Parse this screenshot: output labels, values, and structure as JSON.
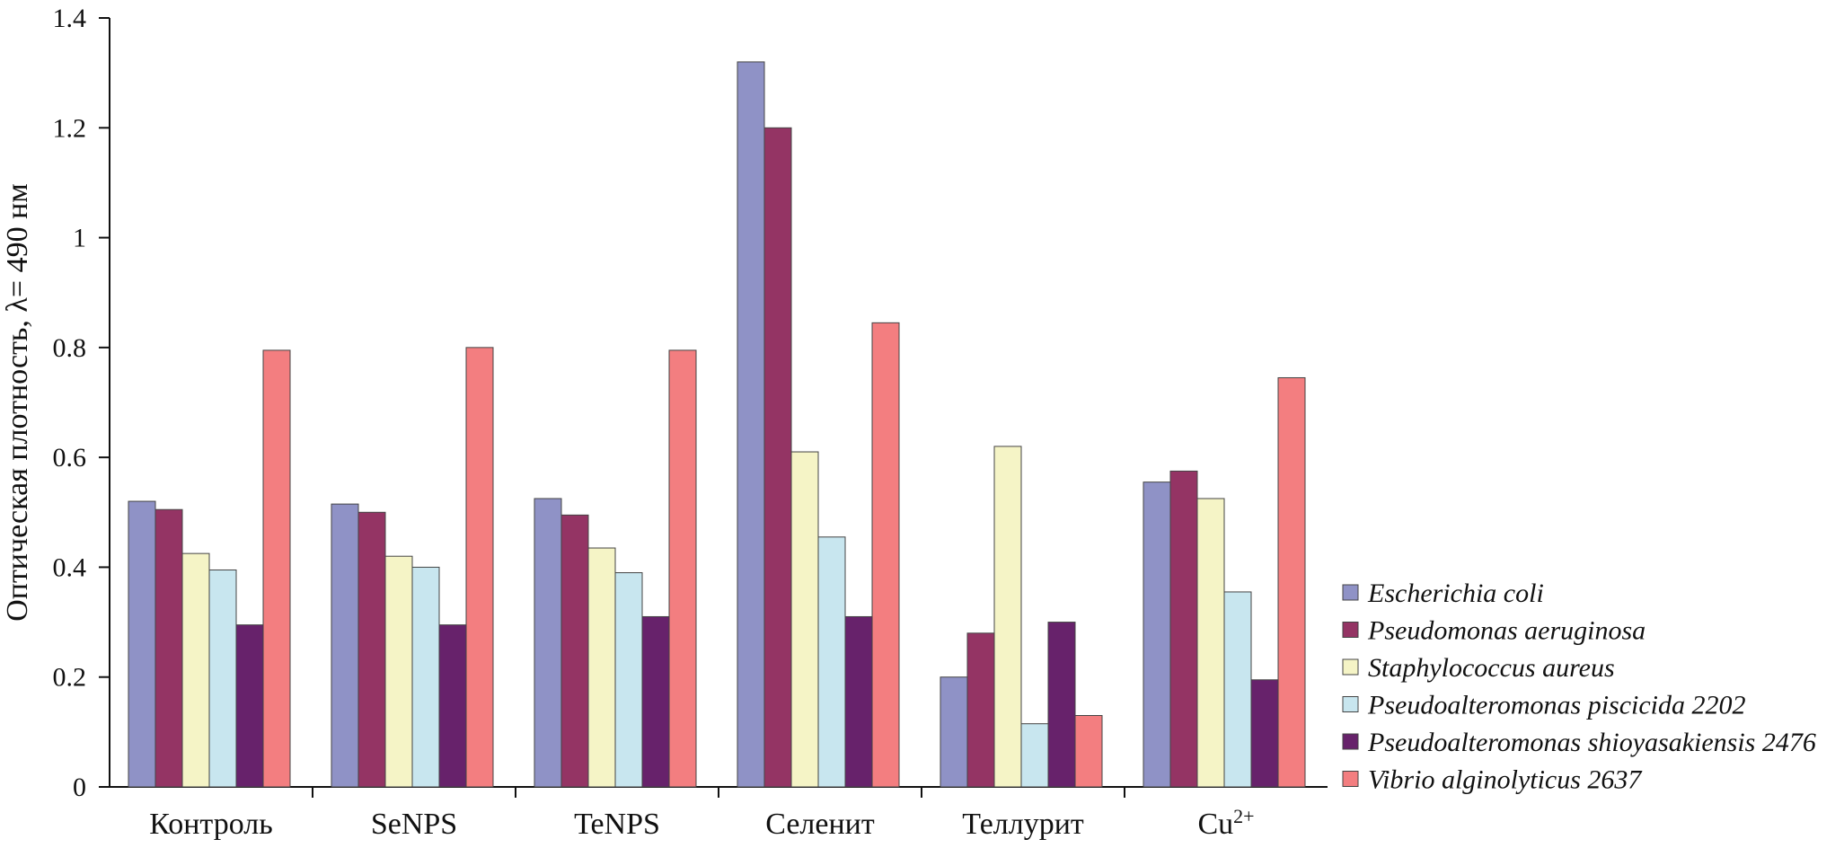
{
  "chart_data": {
    "type": "bar",
    "ylabel": "Оптическая плотность, λ= 490 нм",
    "ylim": [
      0,
      1.4
    ],
    "yticks": [
      "0",
      "0.2",
      "0.4",
      "0.6",
      "0.8",
      "1",
      "1.2",
      "1.4"
    ],
    "categories": [
      "Контроль",
      "SeNPS",
      "TeNPS",
      "Селенит",
      "Теллурит",
      "Cu2+"
    ],
    "category_display": [
      {
        "base": "Контроль",
        "sup": ""
      },
      {
        "base": "SeNPS",
        "sup": ""
      },
      {
        "base": "TeNPS",
        "sup": ""
      },
      {
        "base": "Селенит",
        "sup": ""
      },
      {
        "base": "Теллурит",
        "sup": ""
      },
      {
        "base": "Cu",
        "sup": "2+"
      }
    ],
    "series": [
      {
        "name": "Escherichia coli",
        "color": "#8f92c6",
        "values": [
          0.52,
          0.515,
          0.525,
          1.32,
          0.2,
          0.555
        ]
      },
      {
        "name": "Pseudomonas aeruginosa",
        "color": "#943464",
        "values": [
          0.505,
          0.5,
          0.495,
          1.2,
          0.28,
          0.575
        ]
      },
      {
        "name": "Staphylococcus aureus",
        "color": "#f5f4c6",
        "values": [
          0.425,
          0.42,
          0.435,
          0.61,
          0.62,
          0.525
        ]
      },
      {
        "name": "Pseudoalteromonas piscicida 2202",
        "color": "#c8e6ef",
        "values": [
          0.395,
          0.4,
          0.39,
          0.455,
          0.115,
          0.355
        ]
      },
      {
        "name": "Pseudoalteromonas shioyasakiensis 2476",
        "color": "#67226b",
        "values": [
          0.295,
          0.295,
          0.31,
          0.31,
          0.3,
          0.195
        ]
      },
      {
        "name": "Vibrio alginolyticus 2637",
        "color": "#f37e80",
        "values": [
          0.795,
          0.8,
          0.795,
          0.845,
          0.13,
          0.745
        ]
      }
    ],
    "legend_position": "right",
    "grid": false
  }
}
